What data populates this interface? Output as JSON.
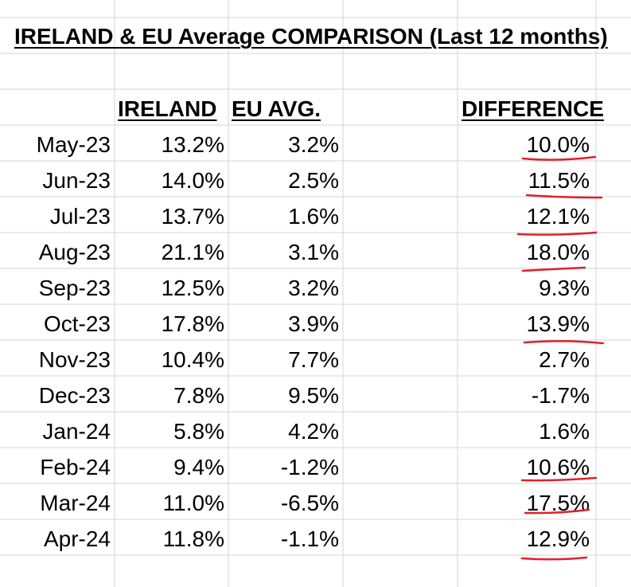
{
  "title": "IRELAND & EU Average COMPARISON (Last 12 months)",
  "headers": {
    "ireland": "IRELAND",
    "eu_avg": "EU AVG.",
    "difference": "DIFFERENCE"
  },
  "rows": [
    {
      "month": "May-23",
      "ireland": "13.2%",
      "eu_avg": "3.2%",
      "difference": "10.0%",
      "underlined": true
    },
    {
      "month": "Jun-23",
      "ireland": "14.0%",
      "eu_avg": "2.5%",
      "difference": "11.5%",
      "underlined": true
    },
    {
      "month": "Jul-23",
      "ireland": "13.7%",
      "eu_avg": "1.6%",
      "difference": "12.1%",
      "underlined": true
    },
    {
      "month": "Aug-23",
      "ireland": "21.1%",
      "eu_avg": "3.1%",
      "difference": "18.0%",
      "underlined": true
    },
    {
      "month": "Sep-23",
      "ireland": "12.5%",
      "eu_avg": "3.2%",
      "difference": "9.3%",
      "underlined": false
    },
    {
      "month": "Oct-23",
      "ireland": "17.8%",
      "eu_avg": "3.9%",
      "difference": "13.9%",
      "underlined": true
    },
    {
      "month": "Nov-23",
      "ireland": "10.4%",
      "eu_avg": "7.7%",
      "difference": "2.7%",
      "underlined": false
    },
    {
      "month": "Dec-23",
      "ireland": "7.8%",
      "eu_avg": "9.5%",
      "difference": "-1.7%",
      "underlined": false
    },
    {
      "month": "Jan-24",
      "ireland": "5.8%",
      "eu_avg": "4.2%",
      "difference": "1.6%",
      "underlined": false
    },
    {
      "month": "Feb-24",
      "ireland": "9.4%",
      "eu_avg": "-1.2%",
      "difference": "10.6%",
      "underlined": true
    },
    {
      "month": "Mar-24",
      "ireland": "11.0%",
      "eu_avg": "-6.5%",
      "difference": "17.5%",
      "underlined": true
    },
    {
      "month": "Apr-24",
      "ireland": "11.8%",
      "eu_avg": "-1.1%",
      "difference": "12.9%",
      "underlined": true
    }
  ],
  "colors": {
    "gridline": "#d4d4d4",
    "text": "#000000",
    "pen_mark": "#e0202a"
  }
}
